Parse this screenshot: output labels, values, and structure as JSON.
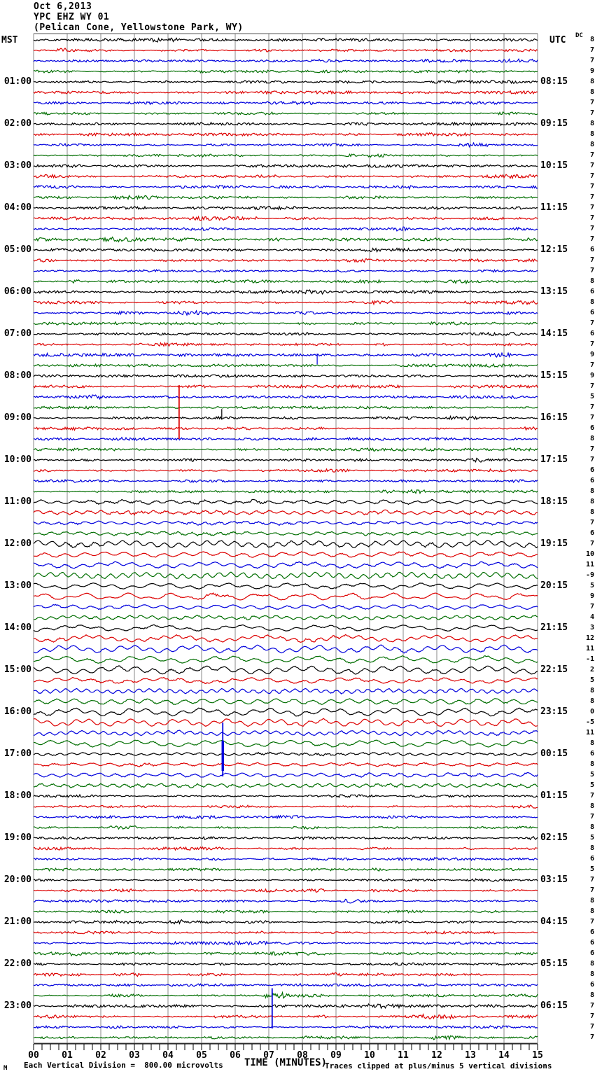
{
  "header": {
    "date": "Oct 6,2013",
    "station": "YPC EHZ WY 01",
    "location": "(Pelican Cone, Yellowstone Park, WY)"
  },
  "footer": {
    "corner_mark": "M",
    "scale_note": "Each Vertical Division =  800.00 microvolts",
    "x_title": "TIME (MINUTES)",
    "clip_note": "Traces clipped at plus/minus 5 vertical divisions"
  },
  "chart_data": {
    "type": "line",
    "variant": "helicorder_seismogram",
    "title": "YPC EHZ WY 01 (Pelican Cone, Yellowstone Park, WY) Oct 6,2013",
    "lines": 96,
    "minutes_per_line": 15,
    "lines_per_hour": 4,
    "division_microvolts": 800.0,
    "clip_divisions": 5,
    "trace_color_cycle": [
      "#000000",
      "#dd0000",
      "#0000dd",
      "#006e00"
    ],
    "grid_color": "#8a8a8a",
    "x_axis": {
      "title": "TIME (MINUTES)",
      "range_minutes": [
        0,
        15
      ],
      "tick_labels": [
        "00",
        "01",
        "02",
        "03",
        "04",
        "05",
        "06",
        "07",
        "08",
        "09",
        "10",
        "11",
        "12",
        "13",
        "14",
        "15"
      ]
    },
    "left_axis": {
      "title": "MST",
      "hour_labels": [
        "01:00",
        "02:00",
        "03:00",
        "04:00",
        "05:00",
        "06:00",
        "07:00",
        "08:00",
        "09:00",
        "10:00",
        "11:00",
        "12:00",
        "13:00",
        "14:00",
        "15:00",
        "16:00",
        "17:00",
        "18:00",
        "19:00",
        "20:00",
        "21:00",
        "22:00",
        "23:00"
      ]
    },
    "right_axis": {
      "title": "UTC",
      "hour_labels": [
        "08:15",
        "09:15",
        "10:15",
        "11:15",
        "12:15",
        "13:15",
        "14:15",
        "15:15",
        "16:15",
        "17:15",
        "18:15",
        "19:15",
        "20:15",
        "21:15",
        "22:15",
        "23:15",
        "00:15",
        "01:15",
        "02:15",
        "03:15",
        "04:15",
        "05:15",
        "06:15"
      ]
    },
    "dc_column": {
      "title": "DC",
      "values": [
        8,
        7,
        7,
        9,
        8,
        8,
        7,
        7,
        8,
        8,
        8,
        7,
        7,
        7,
        7,
        7,
        7,
        7,
        7,
        7,
        6,
        7,
        7,
        8,
        6,
        8,
        6,
        7,
        6,
        7,
        9,
        7,
        9,
        7,
        5,
        7,
        7,
        6,
        8,
        7,
        7,
        6,
        6,
        8,
        8,
        8,
        7,
        6,
        7,
        10,
        11,
        -9,
        5,
        9,
        7,
        4,
        3,
        12,
        11,
        -1,
        2,
        5,
        8,
        8,
        0,
        -5,
        11,
        8,
        6,
        8,
        5,
        5,
        7,
        8,
        7,
        8,
        5,
        8,
        6,
        5,
        7,
        7,
        8,
        8,
        7,
        6,
        6,
        6,
        8,
        8,
        6,
        8,
        7,
        7,
        7,
        7
      ]
    },
    "activity_level_per_line": [
      0,
      0,
      0,
      0,
      0,
      0,
      0,
      0,
      0,
      0,
      0,
      0,
      0,
      0,
      0,
      0,
      0,
      0,
      0,
      0,
      0,
      0,
      0,
      0,
      0,
      0,
      0,
      0,
      0,
      0,
      0,
      0,
      0,
      0,
      0,
      0,
      0,
      0,
      0,
      0,
      0,
      0,
      0,
      0,
      1,
      1,
      1,
      1,
      2,
      2,
      2,
      2,
      2,
      2,
      2,
      2,
      2,
      2,
      2,
      2,
      2,
      2,
      2,
      2,
      2,
      2,
      2,
      2,
      1,
      1,
      1,
      1,
      0,
      0,
      0,
      0,
      0,
      0,
      0,
      0,
      0,
      0,
      0,
      0,
      0,
      0,
      0,
      0,
      0,
      0,
      0,
      0,
      0,
      0,
      0,
      0
    ],
    "events": [
      {
        "line": 30,
        "minute": 8.44,
        "type": "spike",
        "direction": "down",
        "divisions": 0.9
      },
      {
        "line": 33,
        "minute": 4.33,
        "type": "spike",
        "direction": "down",
        "divisions": 5,
        "clipped": true
      },
      {
        "line": 36,
        "minute": 5.6,
        "type": "spike",
        "direction": "up",
        "divisions": 0.85
      },
      {
        "line": 70,
        "minute": 5.63,
        "type": "spike",
        "direction": "up",
        "divisions": 5,
        "clipped": true,
        "thick": true
      },
      {
        "line": 91,
        "minute": 7.15,
        "type": "burst",
        "width_minutes": 0.6,
        "amplitude_multiplier": 3
      },
      {
        "line": 94,
        "minute": 7.1,
        "type": "spike",
        "direction": "up",
        "divisions": 3.7
      }
    ]
  }
}
